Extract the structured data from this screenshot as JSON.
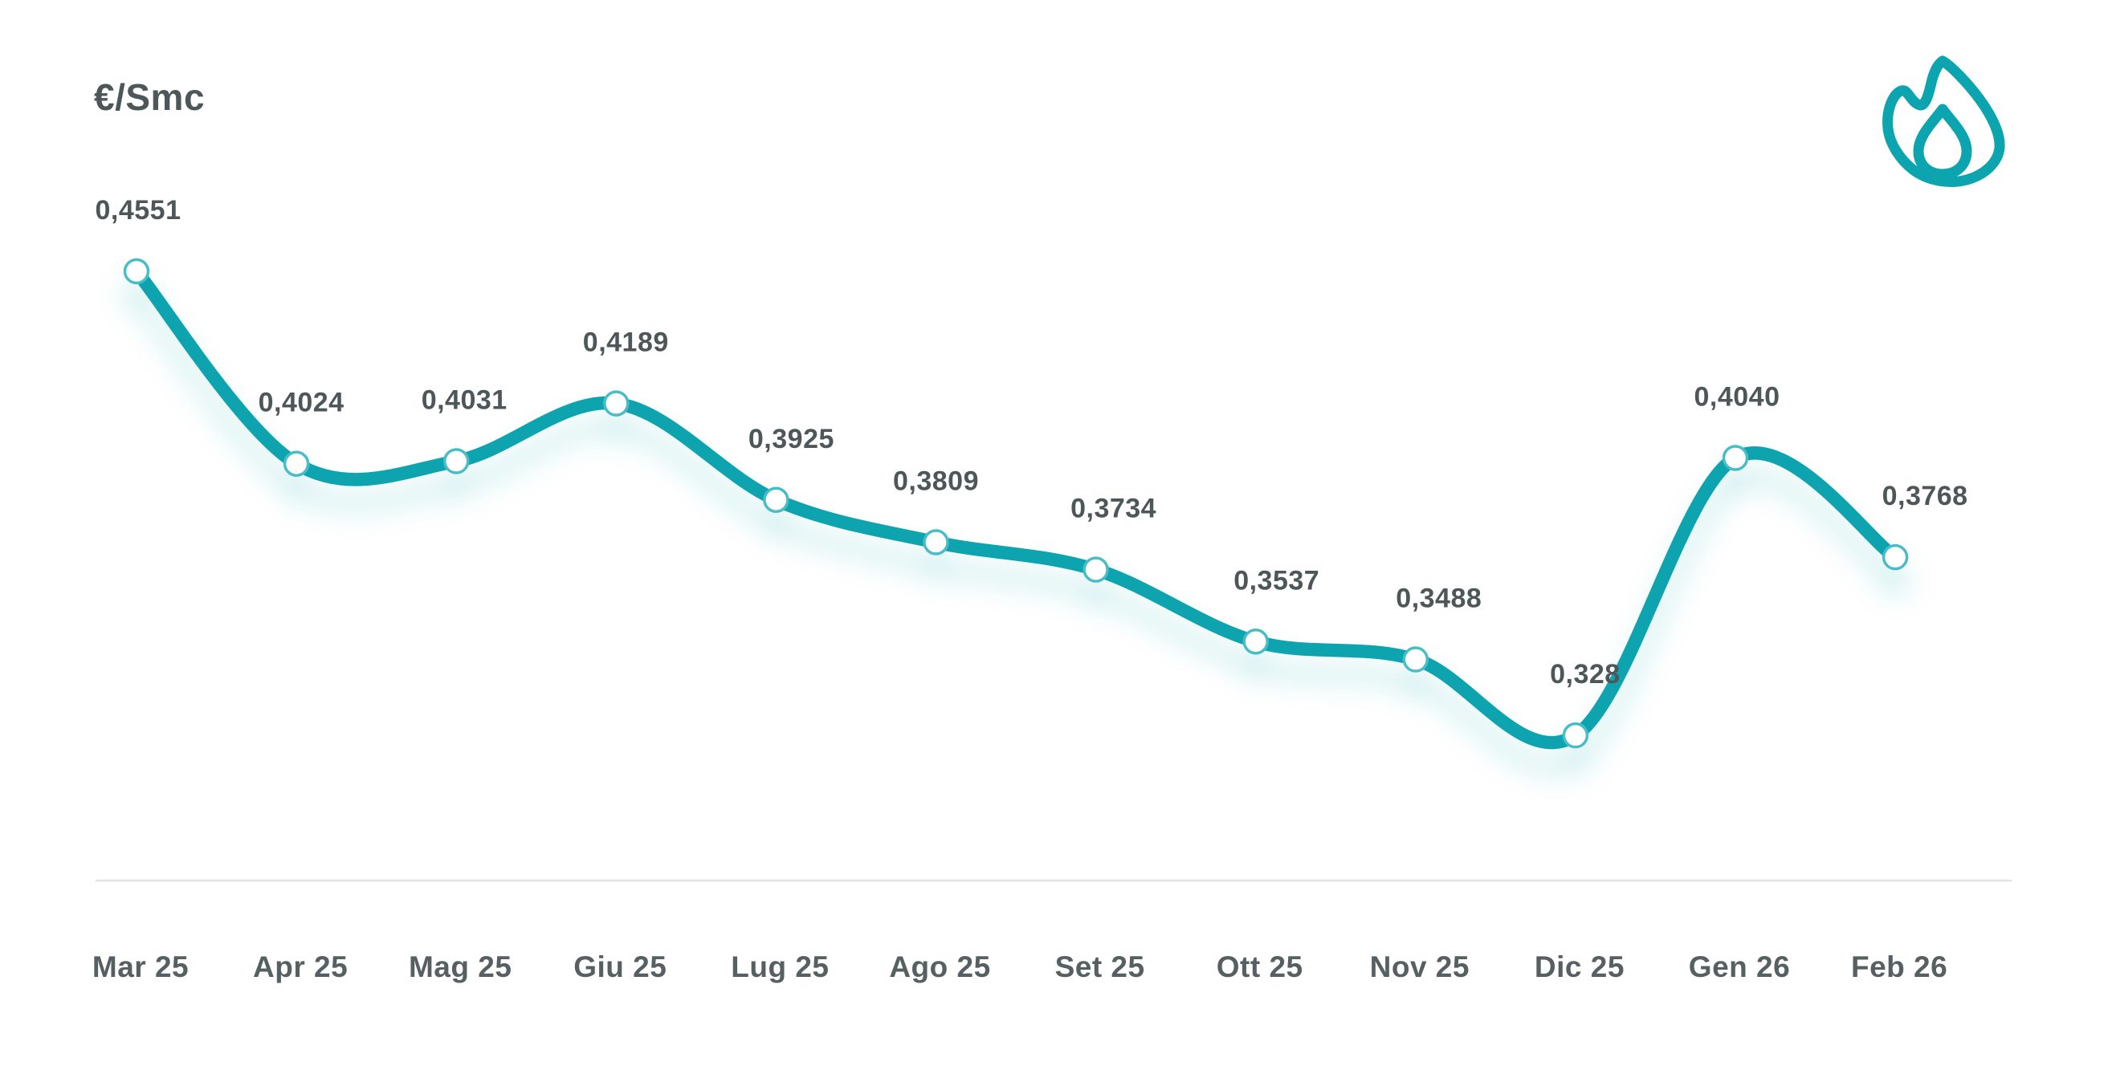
{
  "header": {
    "logo_icon": "flame-icon"
  },
  "colors": {
    "accent": "#0ba4af",
    "marker_ring": "#4abdc7",
    "marker_fill": "#ffffff",
    "value_label_text": "#4d5759",
    "axis_label_text": "#566062",
    "divider": "#e2e2e2",
    "background": "#ffffff"
  },
  "chart_data": {
    "type": "line",
    "title": "",
    "ylabel": "€/Smc",
    "xlabel": "",
    "categories": [
      "Mar 25",
      "Apr 25",
      "Mag 25",
      "Giu 25",
      "Lug 25",
      "Ago 25",
      "Set 25",
      "Ott 25",
      "Nov 25",
      "Dic 25",
      "Gen 26",
      "Feb 26"
    ],
    "values": [
      0.4551,
      0.4024,
      0.4031,
      0.4189,
      0.3925,
      0.3809,
      0.3734,
      0.3537,
      0.3488,
      0.328,
      0.404,
      0.3768
    ],
    "point_labels": [
      "0,4551",
      "0,4024",
      "0,4031",
      "0,4189",
      "0,3925",
      "0,3809",
      "0,3734",
      "0,3537",
      "0,3488",
      "0,328",
      "0,4040",
      "0,3768"
    ],
    "ylim": [
      0.3,
      0.47
    ],
    "grid": false,
    "legend": null,
    "line_style": "smooth-thick-with-glow",
    "marker": "white-circle-teal-ring"
  }
}
